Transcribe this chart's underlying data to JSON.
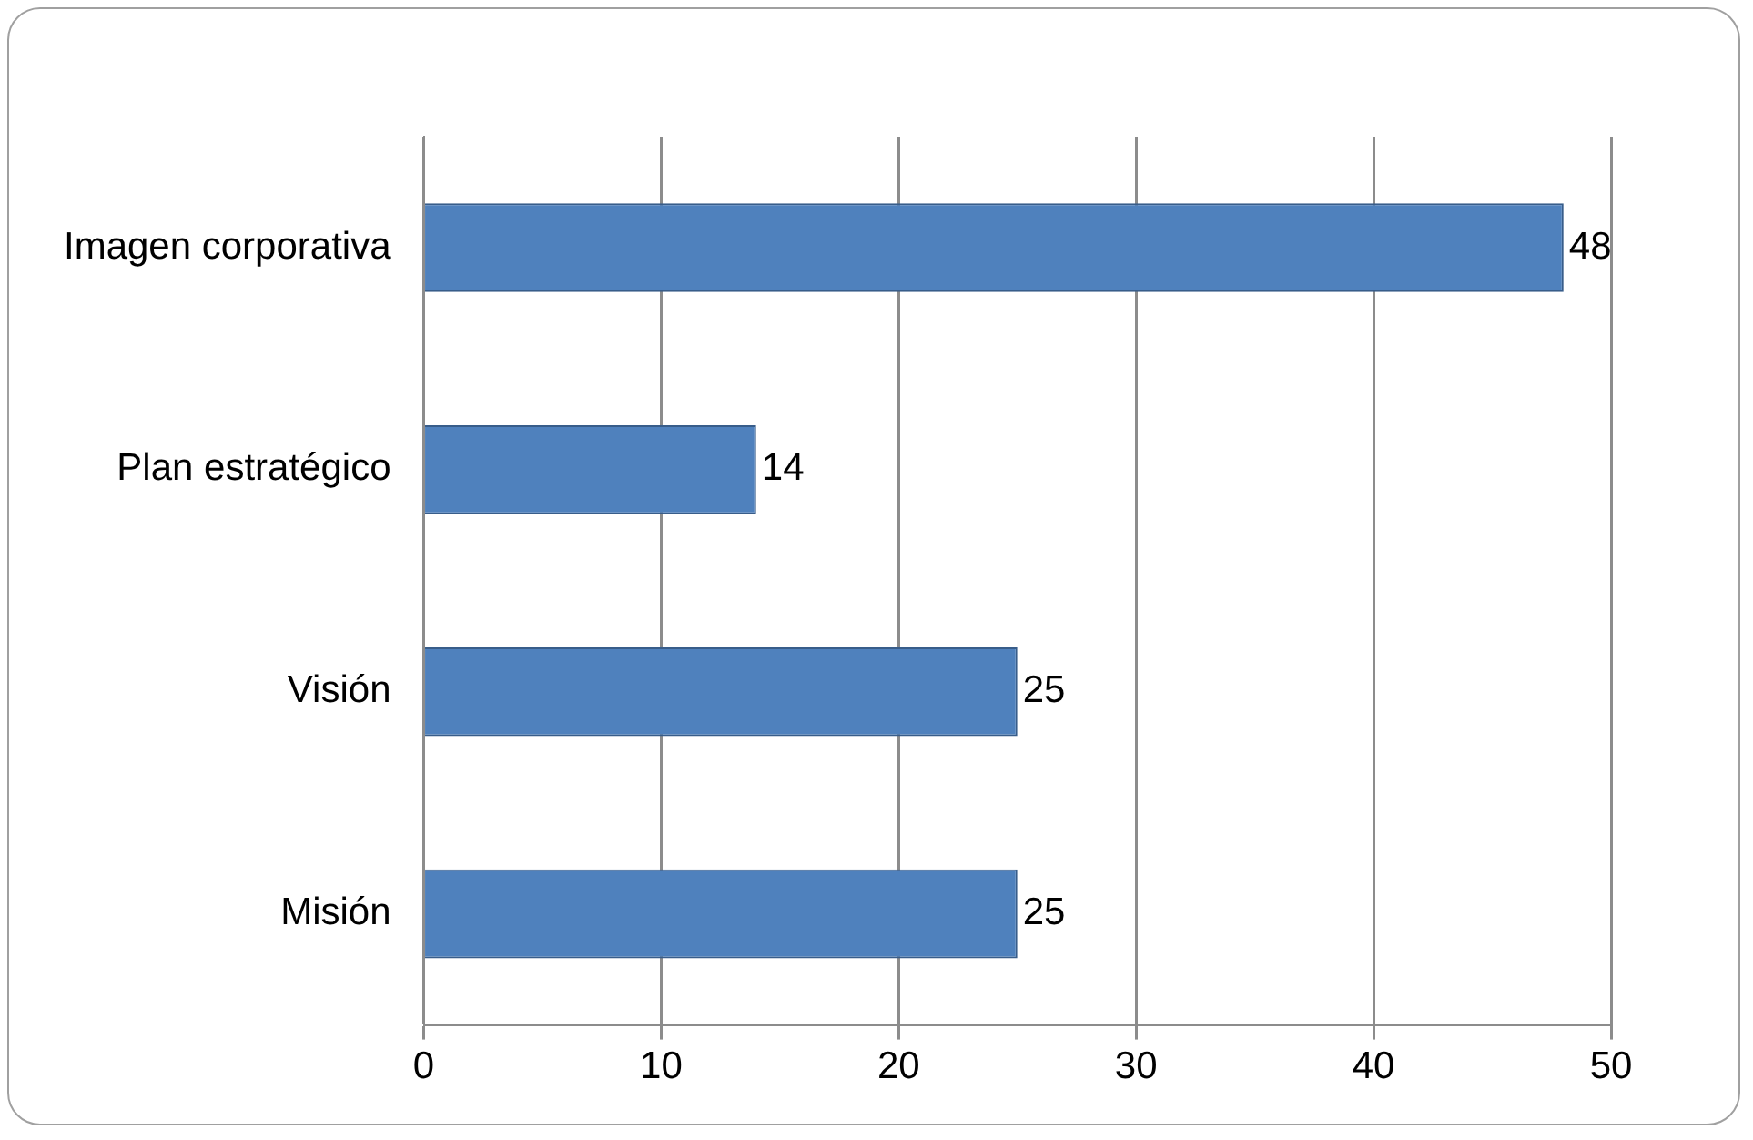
{
  "chart_data": {
    "type": "bar",
    "orientation": "horizontal",
    "categories": [
      "Imagen corporativa",
      "Plan estratégico",
      "Visión",
      "Misión"
    ],
    "values": [
      48,
      14,
      25,
      25
    ],
    "color": "#4f81bd",
    "xlim": [
      0,
      50
    ],
    "xticks": [
      0,
      10,
      20,
      30,
      40,
      50
    ],
    "grid": "x",
    "legend": false,
    "data_labels": true
  }
}
